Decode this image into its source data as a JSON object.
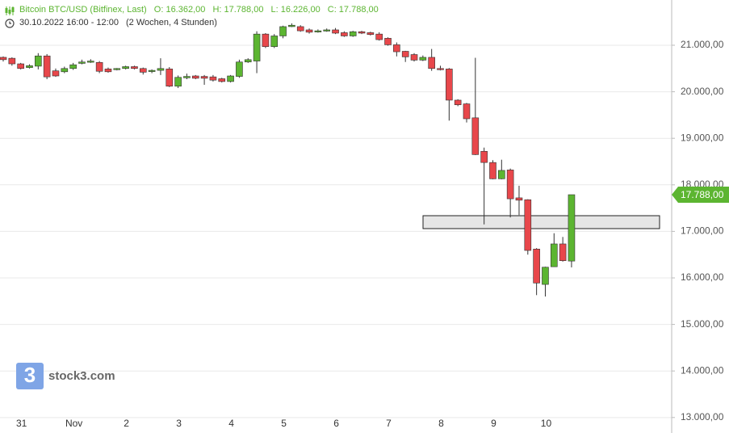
{
  "chart_data": {
    "type": "candlestick",
    "title": "Bitcoin BTC/USD (Bitfinex, Last)",
    "ohlc_labels": [
      "O: 16.362,00",
      "H: 17.788,00",
      "L: 16.226,00",
      "C: 17.788,00"
    ],
    "subtitle": "30.10.2022 16:00 - 12:00",
    "period": "(2 Wochen, 4 Stunden)",
    "watermark": "stock3.com",
    "logo_mark": "3",
    "categories": [
      null,
      null,
      "31",
      null,
      null,
      null,
      null,
      null,
      "Nov",
      null,
      null,
      null,
      null,
      null,
      "2",
      null,
      null,
      null,
      null,
      null,
      "3",
      null,
      null,
      null,
      null,
      null,
      "4",
      null,
      null,
      null,
      null,
      null,
      "5",
      null,
      null,
      null,
      null,
      null,
      "6",
      null,
      null,
      null,
      null,
      null,
      "7",
      null,
      null,
      null,
      null,
      null,
      "8",
      null,
      null,
      null,
      null,
      null,
      "9",
      null,
      null,
      null,
      null,
      null,
      "10",
      null,
      null,
      null
    ],
    "open": [
      20740,
      20720,
      20600,
      20520,
      20550,
      20770,
      20450,
      20430,
      20500,
      20610,
      20650,
      20630,
      20490,
      20480,
      20500,
      20540,
      20500,
      20450,
      20460,
      20490,
      20120,
      20300,
      20340,
      20330,
      20320,
      20280,
      20220,
      20330,
      20640,
      20660,
      21240,
      20970,
      21200,
      21400,
      21400,
      21330,
      21300,
      21310,
      21330,
      21270,
      21200,
      21290,
      21270,
      21240,
      21150,
      21010,
      20870,
      20800,
      20680,
      20740,
      20500,
      20490,
      19820,
      19740,
      19440,
      18720,
      18480,
      18130,
      18320,
      17720,
      17680,
      16620,
      15860,
      16240,
      16730,
      16362
    ],
    "high": [
      20760,
      20740,
      20620,
      20590,
      20830,
      20810,
      20500,
      20540,
      20620,
      20690,
      20700,
      20660,
      20520,
      20510,
      20560,
      20560,
      20520,
      20480,
      20720,
      20530,
      20350,
      20390,
      20360,
      20360,
      20360,
      20300,
      20360,
      20690,
      20720,
      21300,
      21260,
      21240,
      21420,
      21470,
      21430,
      21360,
      21340,
      21360,
      21370,
      21300,
      21310,
      21310,
      21290,
      21280,
      21170,
      21060,
      20880,
      20830,
      20780,
      20920,
      20560,
      20510,
      19840,
      19760,
      20730,
      18800,
      18530,
      18540,
      18350,
      17980,
      17690,
      16640,
      16240,
      16960,
      16880,
      17788
    ],
    "low": [
      20650,
      20560,
      20480,
      20500,
      20480,
      20270,
      20320,
      20400,
      20470,
      20590,
      20620,
      20400,
      20410,
      20460,
      20480,
      20480,
      20370,
      20400,
      20360,
      20100,
      20080,
      20270,
      20270,
      20150,
      20220,
      20200,
      20200,
      20300,
      20620,
      20400,
      20940,
      20940,
      21150,
      21390,
      21290,
      21250,
      21270,
      21290,
      21240,
      21180,
      21180,
      21240,
      21210,
      21100,
      20990,
      20760,
      20640,
      20650,
      20660,
      20450,
      20460,
      19380,
      19690,
      19340,
      18640,
      17150,
      18120,
      18120,
      17300,
      17350,
      16500,
      15630,
      15600,
      16240,
      16350,
      16226
    ],
    "close": [
      20690,
      20600,
      20500,
      20560,
      20770,
      20320,
      20340,
      20500,
      20580,
      20640,
      20660,
      20440,
      20430,
      20500,
      20540,
      20500,
      20420,
      20460,
      20500,
      20120,
      20310,
      20330,
      20290,
      20290,
      20250,
      20220,
      20340,
      20640,
      20690,
      21240,
      20970,
      21200,
      21400,
      21430,
      21310,
      21280,
      21310,
      21330,
      21260,
      21200,
      21290,
      21260,
      21230,
      21120,
      21010,
      20860,
      20750,
      20680,
      20740,
      20500,
      20490,
      19820,
      19720,
      19420,
      18650,
      18480,
      18130,
      18310,
      17700,
      17670,
      16590,
      15890,
      16230,
      16730,
      16370,
      17788
    ],
    "up_color": "#5cb531",
    "down_color": "#e8474b",
    "ylim": [
      12667,
      21972
    ],
    "yticks": [
      {
        "value": 13000,
        "label": "13.000,00"
      },
      {
        "value": 14000,
        "label": "14.000,00"
      },
      {
        "value": 15000,
        "label": "15.000,00"
      },
      {
        "value": 16000,
        "label": "16.000,00"
      },
      {
        "value": 17000,
        "label": "17.000,00"
      },
      {
        "value": 18000,
        "label": "18.000,00"
      },
      {
        "value": 19000,
        "label": "19.000,00"
      },
      {
        "value": 20000,
        "label": "20.000,00"
      },
      {
        "value": 21000,
        "label": "21.000,00"
      }
    ],
    "grid": true,
    "last_price": {
      "value": 17788,
      "label": "17.788,00"
    }
  }
}
